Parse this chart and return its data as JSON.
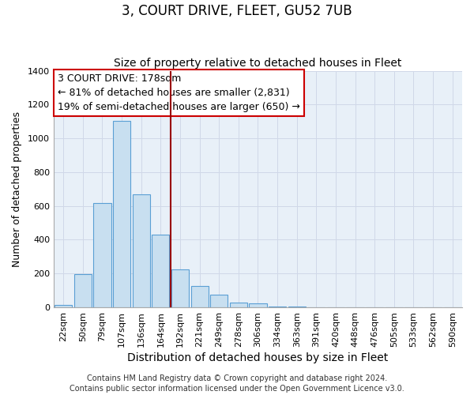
{
  "title": "3, COURT DRIVE, FLEET, GU52 7UB",
  "subtitle": "Size of property relative to detached houses in Fleet",
  "xlabel": "Distribution of detached houses by size in Fleet",
  "ylabel": "Number of detached properties",
  "footer_line1": "Contains HM Land Registry data © Crown copyright and database right 2024.",
  "footer_line2": "Contains public sector information licensed under the Open Government Licence v3.0.",
  "bar_labels": [
    "22sqm",
    "50sqm",
    "79sqm",
    "107sqm",
    "136sqm",
    "164sqm",
    "192sqm",
    "221sqm",
    "249sqm",
    "278sqm",
    "306sqm",
    "334sqm",
    "363sqm",
    "391sqm",
    "420sqm",
    "448sqm",
    "476sqm",
    "505sqm",
    "533sqm",
    "562sqm",
    "590sqm"
  ],
  "bar_values": [
    15,
    195,
    615,
    1105,
    670,
    430,
    225,
    125,
    75,
    30,
    25,
    5,
    3,
    0,
    0,
    0,
    0,
    0,
    0,
    0,
    0
  ],
  "bar_color": "#c8dff0",
  "bar_edge_color": "#5a9fd4",
  "grid_color": "#d0d8e8",
  "annotation_box_color": "#cc0000",
  "annotation_line1": "3 COURT DRIVE: 178sqm",
  "annotation_line2": "← 81% of detached houses are smaller (2,831)",
  "annotation_line3": "19% of semi-detached houses are larger (650) →",
  "vline_position": 5.5,
  "vline_color": "#990000",
  "ylim": [
    0,
    1400
  ],
  "yticks": [
    0,
    200,
    400,
    600,
    800,
    1000,
    1200,
    1400
  ],
  "title_fontsize": 12,
  "subtitle_fontsize": 10,
  "xlabel_fontsize": 10,
  "ylabel_fontsize": 9,
  "annotation_fontsize": 9,
  "tick_fontsize": 8,
  "footer_fontsize": 7,
  "background_color": "#ffffff"
}
